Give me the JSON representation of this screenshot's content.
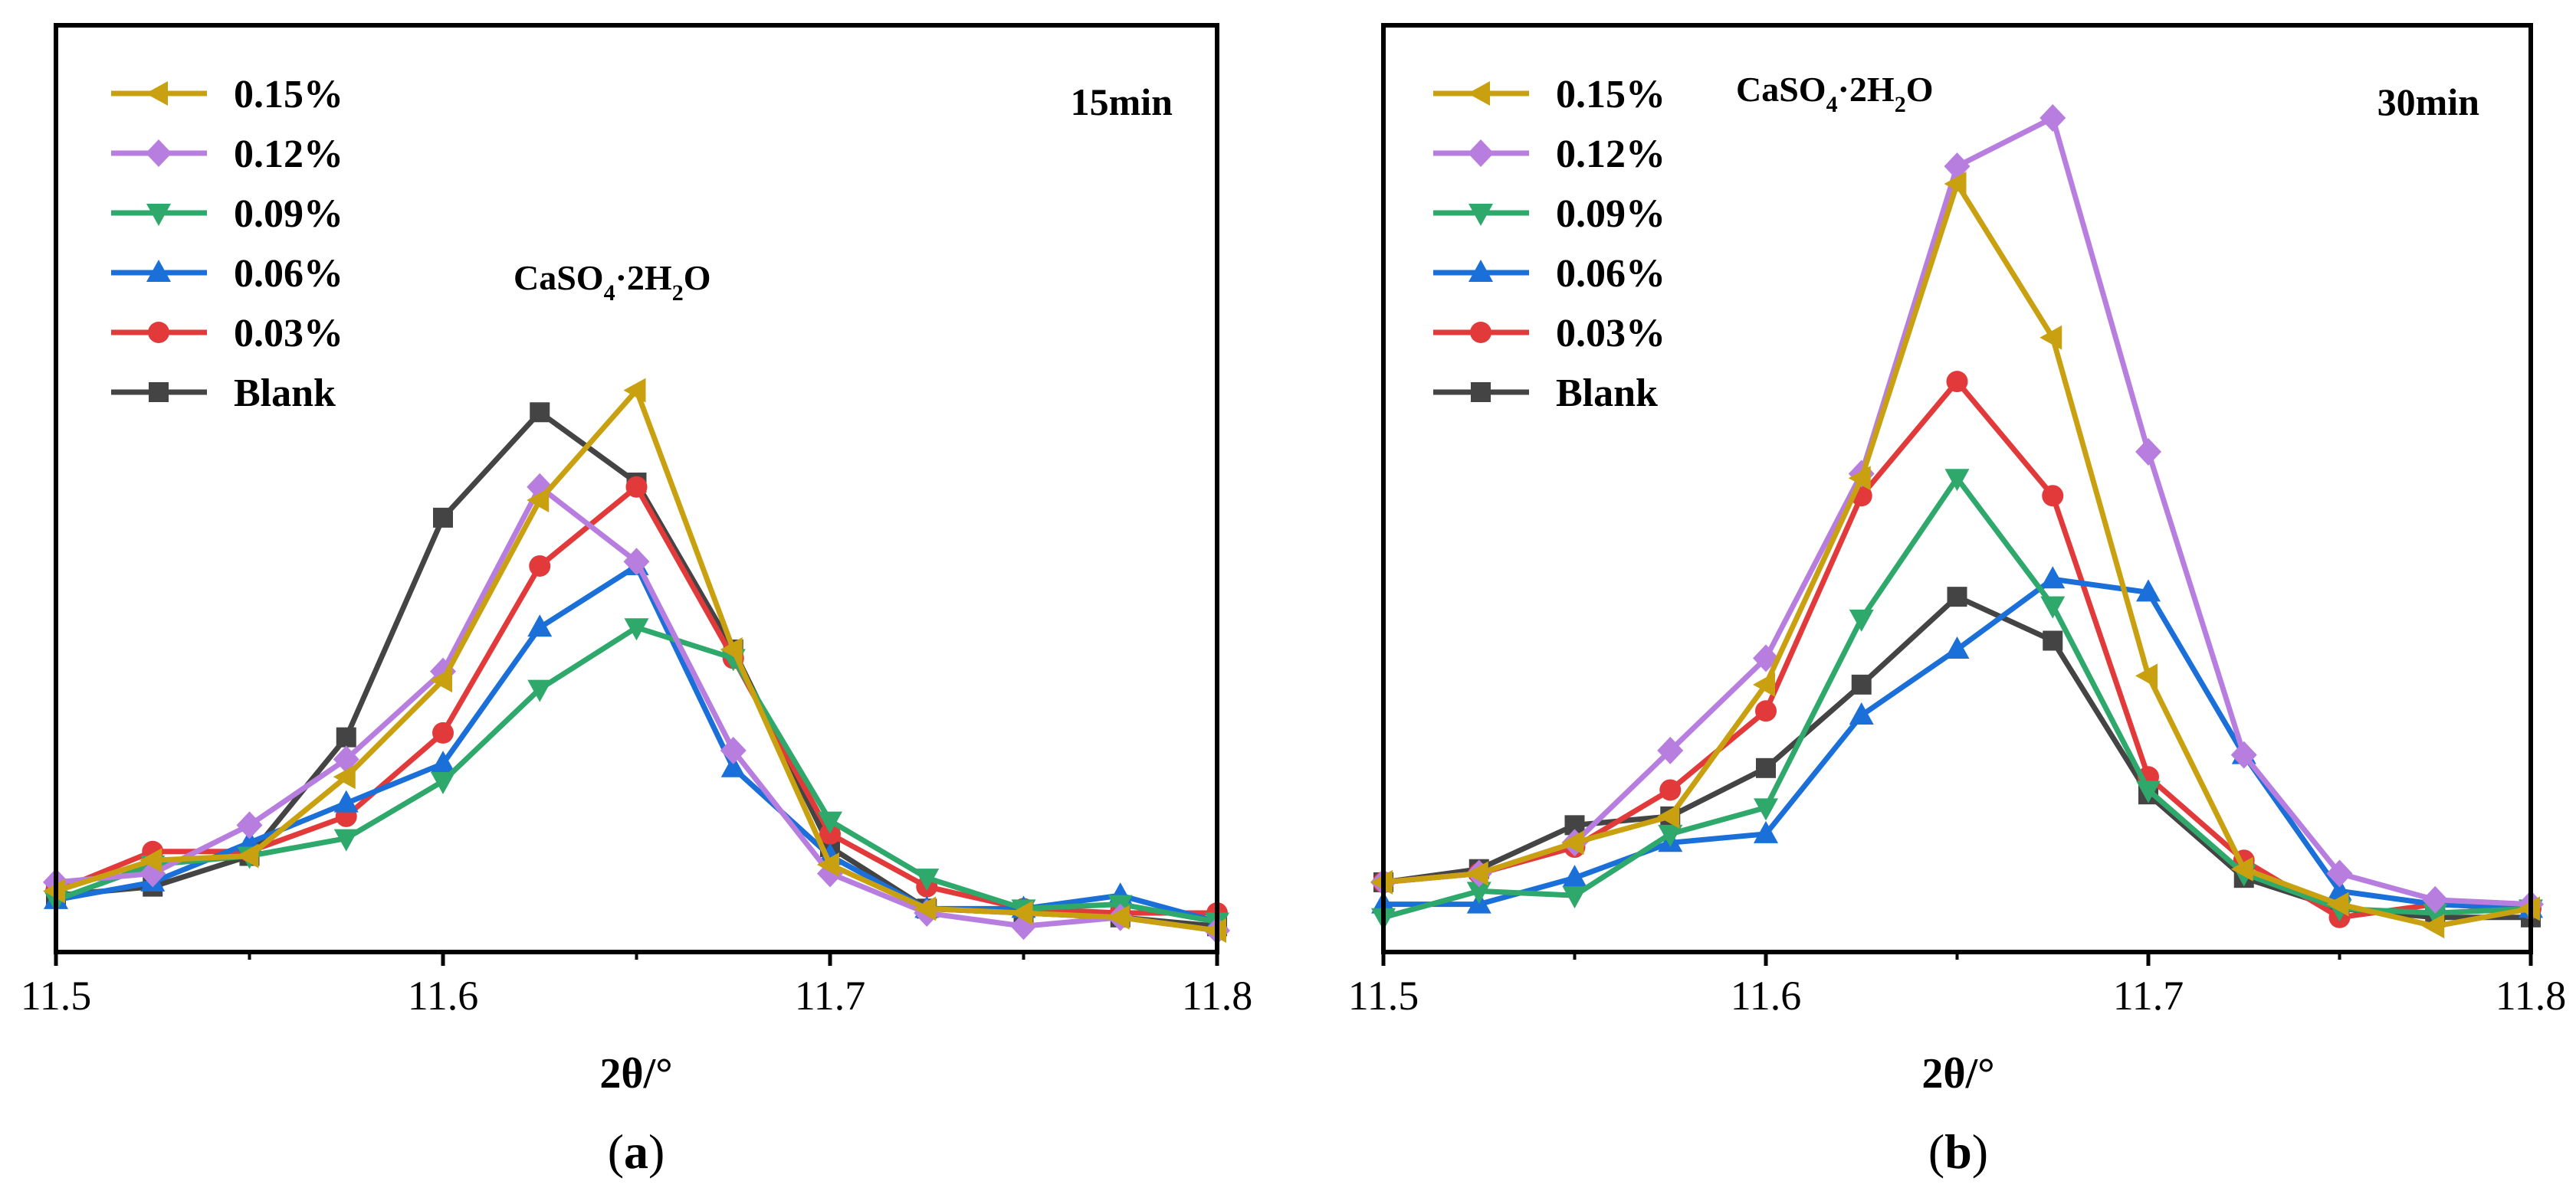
{
  "series_style": [
    {
      "name": "0.15%",
      "color": "#C8A010",
      "marker": "triangle-left"
    },
    {
      "name": "0.12%",
      "color": "#B77EE0",
      "marker": "diamond"
    },
    {
      "name": "0.09%",
      "color": "#2EA86B",
      "marker": "triangle-down"
    },
    {
      "name": "0.06%",
      "color": "#1A6FD8",
      "marker": "triangle-up"
    },
    {
      "name": "0.03%",
      "color": "#E23A3A",
      "marker": "circle"
    },
    {
      "name": "Blank",
      "color": "#444444",
      "marker": "square"
    }
  ],
  "chart_data": [
    {
      "type": "line",
      "panel_label": "a",
      "time_label": "15min",
      "annotation": {
        "base": "CaSO",
        "sub1": "4",
        "mid": "·2H",
        "sub2": "2",
        "end": "O"
      },
      "xlabel": "2θ/°",
      "ylabel": "",
      "xlim": [
        11.5,
        11.8
      ],
      "ylim": [
        0,
        100
      ],
      "xticks": [
        11.5,
        11.6,
        11.7,
        11.8
      ],
      "xtick_labels": [
        "11.5",
        "11.6",
        "11.7",
        "11.8"
      ],
      "legend_position": "top-left",
      "x": [
        11.5,
        11.525,
        11.55,
        11.575,
        11.6,
        11.625,
        11.65,
        11.675,
        11.7,
        11.725,
        11.75,
        11.775,
        11.8
      ],
      "series": [
        {
          "name": "0.15%",
          "values": [
            4.5,
            8,
            8.5,
            17.5,
            28.5,
            49,
            61.5,
            32,
            7.5,
            2.5,
            2,
            1.5,
            0
          ]
        },
        {
          "name": "0.12%",
          "values": [
            5.5,
            6.5,
            12,
            19.5,
            29.5,
            50.5,
            42,
            20.5,
            6.5,
            2,
            0.5,
            1.5,
            0
          ]
        },
        {
          "name": "0.09%",
          "values": [
            3.5,
            7.5,
            8.5,
            10.5,
            17,
            27.5,
            34.5,
            31,
            12.5,
            6,
            2.5,
            3,
            1
          ]
        },
        {
          "name": "0.06%",
          "values": [
            3.5,
            5.5,
            10,
            14.5,
            19,
            34.5,
            41.5,
            18.5,
            8.5,
            2.5,
            2.5,
            4,
            1
          ]
        },
        {
          "name": "0.03%",
          "values": [
            4.5,
            9,
            9,
            13,
            22.5,
            41.5,
            50.5,
            31,
            11,
            5,
            2.5,
            2,
            2
          ]
        },
        {
          "name": "Blank",
          "values": [
            4,
            5,
            8.5,
            22,
            47,
            59,
            51,
            32,
            9.5,
            2.5,
            2,
            1.5,
            0.5
          ]
        }
      ]
    },
    {
      "type": "line",
      "panel_label": "b",
      "time_label": "30min",
      "annotation": {
        "base": "CaSO",
        "sub1": "4",
        "mid": "·2H",
        "sub2": "2",
        "end": "O"
      },
      "xlabel": "2θ/°",
      "ylabel": "",
      "xlim": [
        11.5,
        11.8
      ],
      "ylim": [
        0,
        100
      ],
      "xticks": [
        11.5,
        11.6,
        11.7,
        11.8
      ],
      "xtick_labels": [
        "11.5",
        "11.6",
        "11.7",
        "11.8"
      ],
      "legend_position": "top-left",
      "x": [
        11.5,
        11.525,
        11.55,
        11.575,
        11.6,
        11.625,
        11.65,
        11.675,
        11.7,
        11.725,
        11.75,
        11.775,
        11.8
      ],
      "series": [
        {
          "name": "0.15%",
          "values": [
            5.5,
            6.5,
            10,
            13,
            28,
            51.5,
            85,
            67.5,
            29,
            7,
            3,
            0.5,
            2.5
          ]
        },
        {
          "name": "0.12%",
          "values": [
            5.5,
            6.5,
            10,
            20.5,
            31,
            52,
            87,
            92.5,
            54.5,
            20,
            6.5,
            3.5,
            3
          ]
        },
        {
          "name": "0.09%",
          "values": [
            1.5,
            4.5,
            4,
            11,
            14,
            35.5,
            51.5,
            37,
            16,
            6.5,
            2.5,
            2,
            2.5
          ]
        },
        {
          "name": "0.06%",
          "values": [
            3,
            3,
            6,
            10,
            11,
            24.5,
            32,
            40,
            38.5,
            20,
            4.5,
            3,
            2.5
          ]
        },
        {
          "name": "0.03%",
          "values": [
            5.5,
            6.5,
            9.5,
            16,
            25,
            49.5,
            62.5,
            49.5,
            17.5,
            8,
            1.5,
            3,
            2.5
          ]
        },
        {
          "name": "Blank",
          "values": [
            5.5,
            7,
            12,
            13,
            18.5,
            28,
            38,
            33,
            15.5,
            6,
            2.5,
            1.5,
            1.5
          ]
        }
      ]
    }
  ]
}
